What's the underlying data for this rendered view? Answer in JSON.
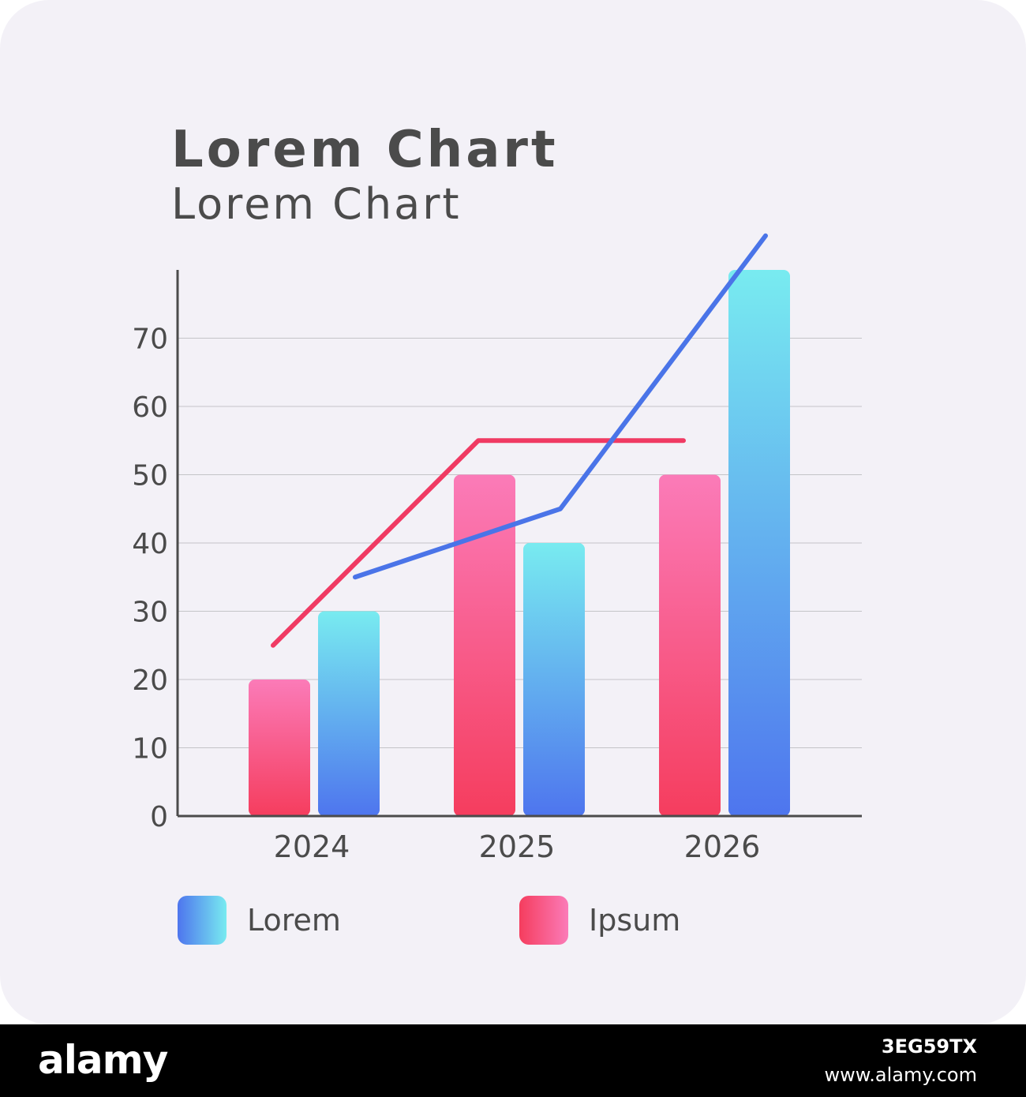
{
  "chart_data": {
    "type": "bar",
    "title": "Lorem Chart",
    "subtitle": "Lorem Chart",
    "categories": [
      "2024",
      "2025",
      "2026"
    ],
    "y_ticks": [
      "0",
      "10",
      "20",
      "30",
      "40",
      "50",
      "60",
      "70"
    ],
    "ylim": [
      0,
      80
    ],
    "grid": true,
    "legend_position": "bottom",
    "series": [
      {
        "name": "Ipsum",
        "type": "bar",
        "values": [
          20,
          50,
          50
        ],
        "color_top": "#fb7bb8",
        "color_bottom": "#f53d5e"
      },
      {
        "name": "Lorem",
        "type": "bar",
        "values": [
          30,
          40,
          80
        ],
        "color_top": "#78ebf0",
        "color_bottom": "#4e75ee"
      },
      {
        "name": "Ipsum",
        "type": "line",
        "x": [
          1.8,
          2.8,
          3.8
        ],
        "values": [
          25,
          55,
          55
        ],
        "color": "#f03a63"
      },
      {
        "name": "Lorem",
        "type": "line",
        "x": [
          2.2,
          3.2,
          4.2
        ],
        "values": [
          35,
          45,
          85
        ],
        "color": "#4a74e8"
      }
    ],
    "legend": [
      {
        "label": "Lorem",
        "color_start": "#4e75ee",
        "color_end": "#78ebf0"
      },
      {
        "label": "Ipsum",
        "color_start": "#f53d5e",
        "color_end": "#fb7bb8"
      }
    ]
  },
  "footer": {
    "brand": "alamy",
    "image_id": "3EG59TX",
    "site": "www.alamy.com"
  }
}
